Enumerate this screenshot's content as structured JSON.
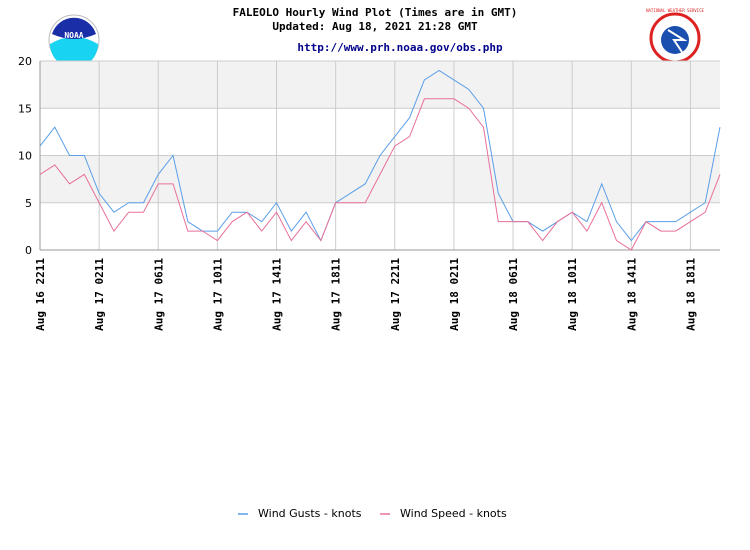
{
  "chart_data": {
    "type": "line",
    "title": "FALEOLO Hourly Wind Plot (Times are in GMT)",
    "subtitle": "Updated: Aug 18, 2021 21:28 GMT",
    "link": "http://www.prh.noaa.gov/obs.php",
    "logo_left": "NOAA",
    "logo_right": "NATIONAL WEATHER SERVICE",
    "categories": [
      "Aug 16 2211",
      null,
      null,
      null,
      "Aug 17 0211",
      null,
      null,
      null,
      "Aug 17 0611",
      null,
      null,
      null,
      "Aug 17 1011",
      null,
      null,
      null,
      "Aug 17 1411",
      null,
      null,
      null,
      "Aug 17 1811",
      null,
      null,
      null,
      "Aug 17 2211",
      null,
      null,
      null,
      "Aug 18 0211",
      null,
      null,
      null,
      "Aug 18 0611",
      null,
      null,
      null,
      "Aug 18 1011",
      null,
      null,
      null,
      "Aug 18 1411",
      null,
      null,
      null,
      "Aug 18 1811",
      null,
      null
    ],
    "series": [
      {
        "name": "Wind Gusts - knots",
        "color": "#5b9ee8",
        "values": [
          11,
          13,
          10,
          10,
          6,
          4,
          5,
          5,
          8,
          10,
          3,
          2,
          2,
          4,
          4,
          3,
          5,
          2,
          4,
          1,
          5,
          6,
          7,
          10,
          12,
          14,
          18,
          19,
          18,
          17,
          15,
          6,
          3,
          3,
          2,
          3,
          4,
          3,
          7,
          3,
          1,
          3,
          3,
          3,
          4,
          5,
          13
        ]
      },
      {
        "name": "Wind Speed - knots",
        "color": "#e8709a",
        "values": [
          8,
          9,
          7,
          8,
          5,
          2,
          4,
          4,
          7,
          7,
          2,
          2,
          1,
          3,
          4,
          2,
          4,
          1,
          3,
          1,
          5,
          5,
          5,
          8,
          11,
          12,
          16,
          16,
          16,
          15,
          13,
          3,
          3,
          3,
          1,
          3,
          4,
          2,
          5,
          1,
          0,
          3,
          2,
          2,
          3,
          4,
          8
        ]
      }
    ],
    "ylim": [
      0,
      20
    ],
    "yticks": [
      0,
      5,
      10,
      15,
      20
    ],
    "grid": true
  }
}
